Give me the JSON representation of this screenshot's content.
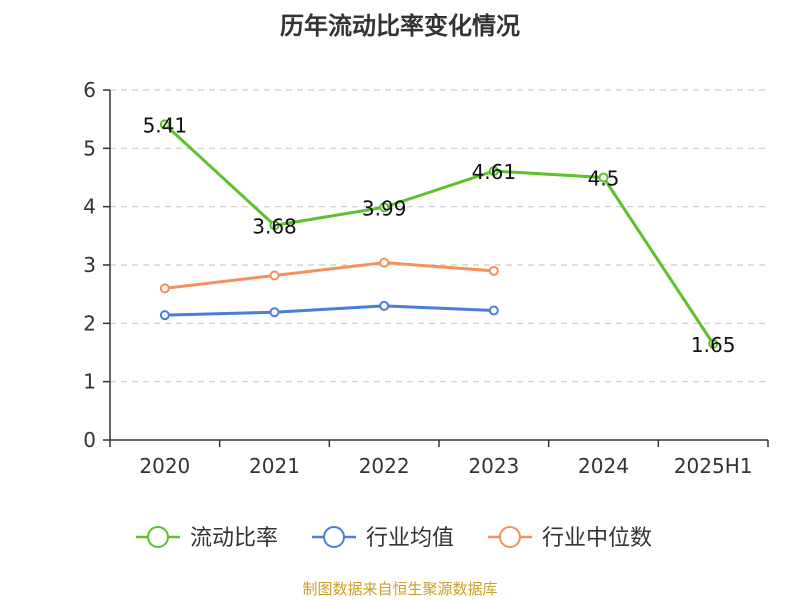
{
  "chart_data": {
    "type": "line",
    "title": "历年流动比率变化情况",
    "categories": [
      "2020",
      "2021",
      "2022",
      "2023",
      "2024",
      "2025H1"
    ],
    "ylim": [
      0,
      6
    ],
    "yticks": [
      "0",
      "1",
      "2",
      "3",
      "4",
      "5",
      "6"
    ],
    "grid": true,
    "legend_position": "bottom",
    "series": [
      {
        "name": "流动比率",
        "color": "#5cc12a",
        "values": [
          5.41,
          3.68,
          3.99,
          4.61,
          4.5,
          1.65
        ],
        "labels": [
          "5.41",
          "3.68",
          "3.99",
          "4.61",
          "4.5",
          "1.65"
        ]
      },
      {
        "name": "行业均值",
        "color": "#4a7fd6",
        "values": [
          2.14,
          2.19,
          2.3,
          2.22,
          null,
          null
        ]
      },
      {
        "name": "行业中位数",
        "color": "#f4915a",
        "values": [
          2.6,
          2.82,
          3.04,
          2.9,
          null,
          null
        ]
      }
    ]
  },
  "source": "制图数据来自恒生聚源数据库"
}
